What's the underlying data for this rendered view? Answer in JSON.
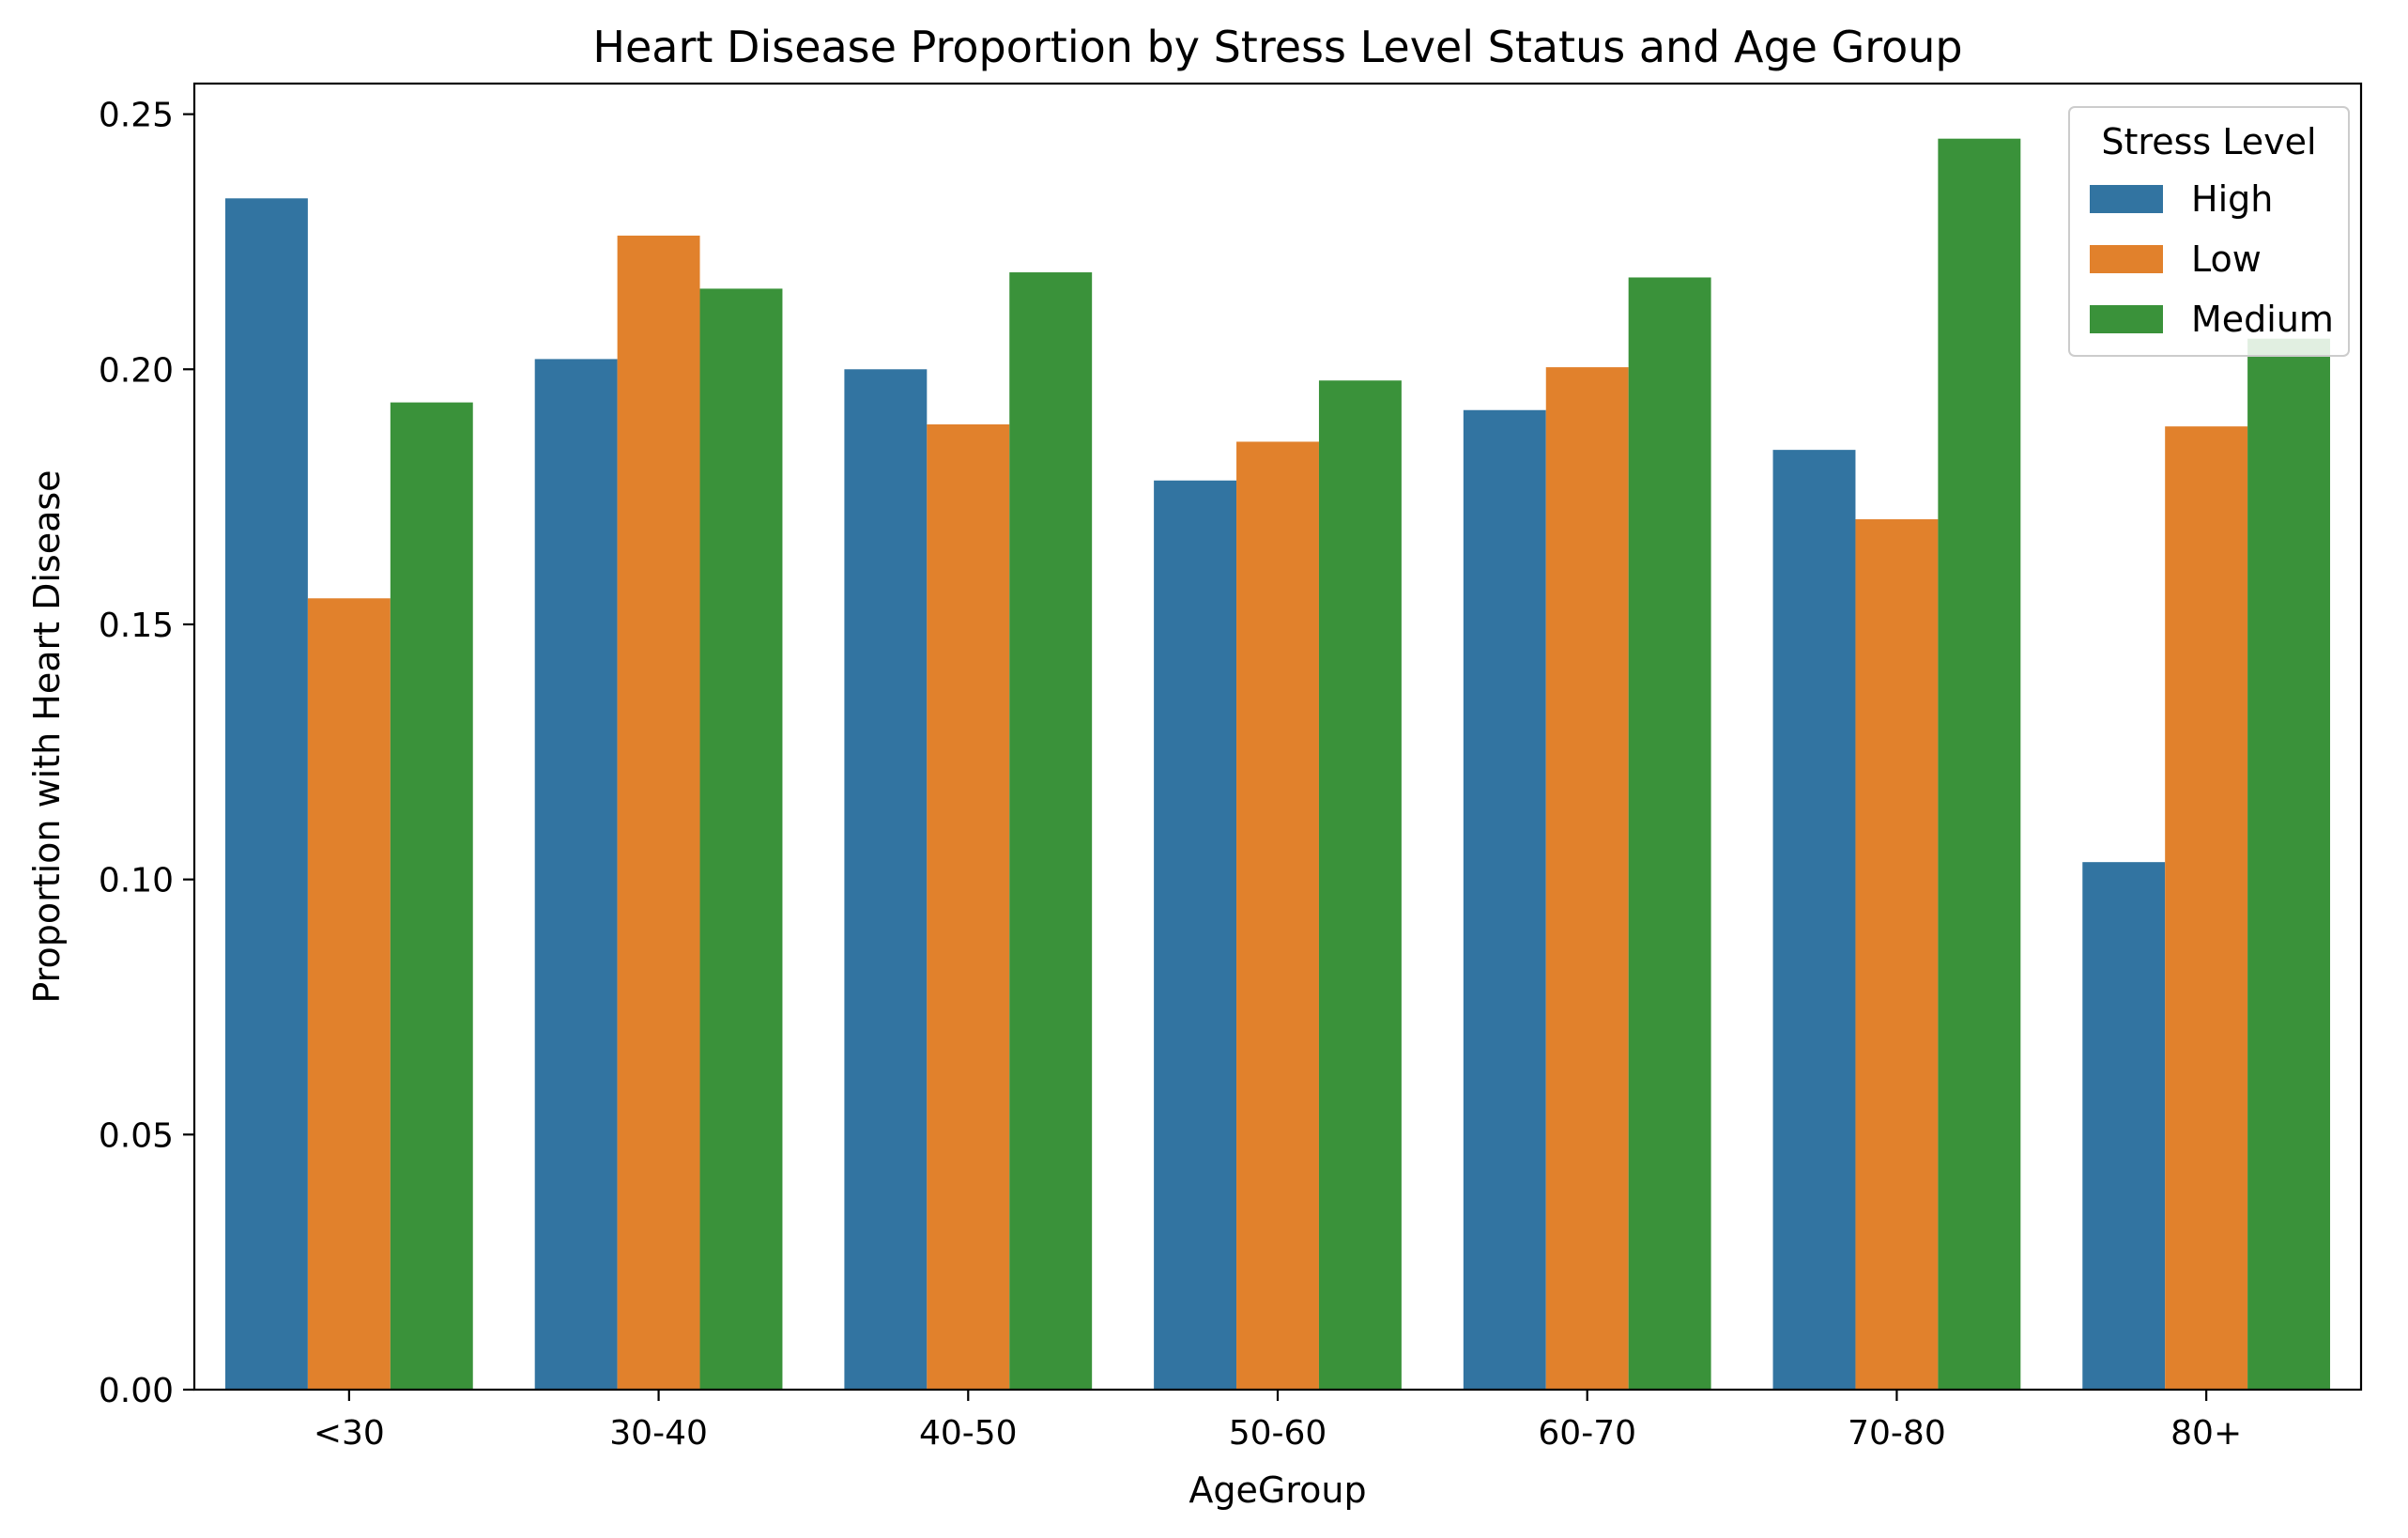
{
  "chart_data": {
    "type": "bar",
    "title": "Heart Disease Proportion by Stress Level Status and Age Group",
    "xlabel": "AgeGroup",
    "ylabel": "Proportion with Heart Disease",
    "categories": [
      "<30",
      "30-40",
      "40-50",
      "50-60",
      "60-70",
      "70-80",
      "80+"
    ],
    "ylim": [
      0,
      0.256
    ],
    "yticks": [
      "0.00",
      "0.05",
      "0.10",
      "0.15",
      "0.20",
      "0.25"
    ],
    "legend_title": "Stress Level",
    "legend_position": "upper right",
    "grid": false,
    "series": [
      {
        "name": "High",
        "color": "#3274a1",
        "values": [
          0.2335,
          0.202,
          0.2,
          0.1782,
          0.192,
          0.1842,
          0.1034
        ]
      },
      {
        "name": "Low",
        "color": "#e1812c",
        "values": [
          0.1551,
          0.2262,
          0.1892,
          0.1858,
          0.2004,
          0.1706,
          0.1888
        ]
      },
      {
        "name": "Medium",
        "color": "#3a923a",
        "values": [
          0.1935,
          0.2158,
          0.219,
          0.1978,
          0.218,
          0.2452,
          0.206
        ]
      }
    ]
  }
}
